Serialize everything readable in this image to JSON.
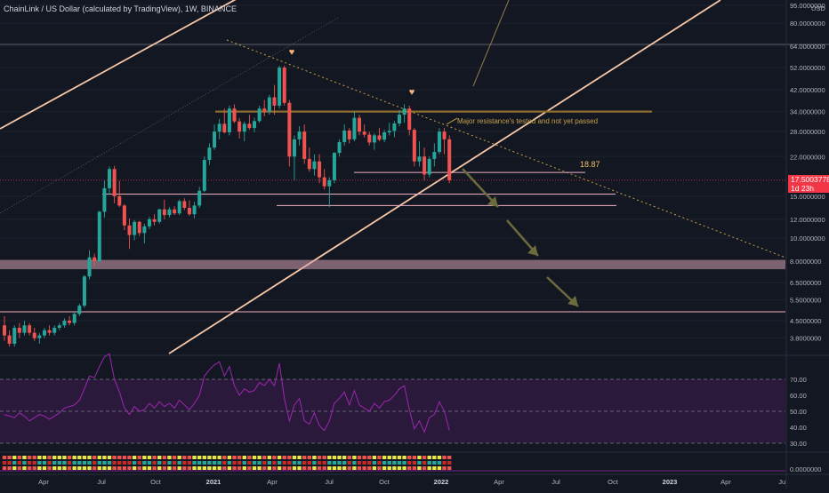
{
  "header": {
    "symbol_title": "ChainLink / US Dollar (calculated by TradingView), 1W, BINANCE"
  },
  "price_axis": {
    "currency": "USD",
    "ticks": [
      {
        "label": "95.0000000",
        "value": 95
      },
      {
        "label": "80.0000000",
        "value": 80
      },
      {
        "label": "64.0000000",
        "value": 64
      },
      {
        "label": "52.0000000",
        "value": 52
      },
      {
        "label": "42.0000000",
        "value": 42
      },
      {
        "label": "34.0000000",
        "value": 34
      },
      {
        "label": "28.0000000",
        "value": 28
      },
      {
        "label": "22.0000000",
        "value": 22
      },
      {
        "label": "15.0000000",
        "value": 15
      },
      {
        "label": "12.0000000",
        "value": 12
      },
      {
        "label": "10.0000000",
        "value": 10
      },
      {
        "label": "8.0000000",
        "value": 8
      },
      {
        "label": "6.5000000",
        "value": 6.5
      },
      {
        "label": "5.5000000",
        "value": 5.5
      },
      {
        "label": "4.5000000",
        "value": 4.5
      },
      {
        "label": "3.8000000",
        "value": 3.8
      }
    ],
    "current_price": "17.5003778",
    "countdown": "1d 23h"
  },
  "rsi_axis": {
    "ticks": [
      "70.00",
      "60.00",
      "50.00",
      "40.00",
      "30.00"
    ],
    "upper": 70,
    "middle": 50,
    "lower": 30
  },
  "volume_axis": {
    "label": "0.0000000"
  },
  "time_axis": {
    "labels": [
      "Apr",
      "Jul",
      "Oct",
      "2021",
      "Apr",
      "Jul",
      "Oct",
      "2022",
      "Apr",
      "Jul",
      "Oct",
      "2023",
      "Apr",
      "Jul"
    ]
  },
  "annotations": {
    "resistance_note": "Major resistance's tested and not yet passed",
    "level_label": "18.87"
  },
  "colors": {
    "background": "#131722",
    "up": "#26a69a",
    "down": "#ef5350",
    "channel_main": "#f7c8a8",
    "channel_thin": "#5d606b",
    "resistance": "#8d6e2e",
    "support": "#f0b0c0",
    "zone": "#d4a0b0",
    "rsi_line": "#9c27b0",
    "arrow": "#6b6b3d"
  },
  "chart_data": {
    "type": "candlestick",
    "interval": "1W",
    "y_scale": "log",
    "y_range": [
      3.3,
      100
    ],
    "candles": [
      [
        4.3,
        4.7,
        3.7,
        3.9
      ],
      [
        3.9,
        4.1,
        3.5,
        3.6
      ],
      [
        3.6,
        4.3,
        3.5,
        4.2
      ],
      [
        4.2,
        4.4,
        3.8,
        4.0
      ],
      [
        4.0,
        4.5,
        3.9,
        4.3
      ],
      [
        4.3,
        4.4,
        3.9,
        4.0
      ],
      [
        4.0,
        4.2,
        3.7,
        3.8
      ],
      [
        3.8,
        4.0,
        3.6,
        3.9
      ],
      [
        3.9,
        4.2,
        3.8,
        4.1
      ],
      [
        4.1,
        4.3,
        3.9,
        4.0
      ],
      [
        4.0,
        4.3,
        3.9,
        4.2
      ],
      [
        4.2,
        4.4,
        4.1,
        4.3
      ],
      [
        4.3,
        4.6,
        4.2,
        4.5
      ],
      [
        4.5,
        4.7,
        4.3,
        4.4
      ],
      [
        4.4,
        4.9,
        4.3,
        4.8
      ],
      [
        4.8,
        5.3,
        4.7,
        5.2
      ],
      [
        5.2,
        7.0,
        5.1,
        6.9
      ],
      [
        6.9,
        8.9,
        6.7,
        8.3
      ],
      [
        8.3,
        8.6,
        7.6,
        8.0
      ],
      [
        8.0,
        13.0,
        7.9,
        12.9
      ],
      [
        12.9,
        17.4,
        12.2,
        16.2
      ],
      [
        16.2,
        20.0,
        15.2,
        19.5
      ],
      [
        19.5,
        20.1,
        14.0,
        15.0
      ],
      [
        15.0,
        17.4,
        13.5,
        13.7
      ],
      [
        13.7,
        13.9,
        10.8,
        11.3
      ],
      [
        11.3,
        12.1,
        9.0,
        10.3
      ],
      [
        10.3,
        11.9,
        9.8,
        11.7
      ],
      [
        11.7,
        11.8,
        10.2,
        10.5
      ],
      [
        10.5,
        11.5,
        9.5,
        11.2
      ],
      [
        11.2,
        12.3,
        10.9,
        12.0
      ],
      [
        12.0,
        12.6,
        11.3,
        11.7
      ],
      [
        11.7,
        13.3,
        11.5,
        13.2
      ],
      [
        13.2,
        14.5,
        12.0,
        12.5
      ],
      [
        12.5,
        13.5,
        12.2,
        13.2
      ],
      [
        13.2,
        13.6,
        12.5,
        12.7
      ],
      [
        12.7,
        14.5,
        12.5,
        14.3
      ],
      [
        14.3,
        14.7,
        13.1,
        13.4
      ],
      [
        13.4,
        14.4,
        12.4,
        12.6
      ],
      [
        12.6,
        14.2,
        12.1,
        13.7
      ],
      [
        13.7,
        16.4,
        13.4,
        15.8
      ],
      [
        15.8,
        22.0,
        15.6,
        21.3
      ],
      [
        21.3,
        25.0,
        20.3,
        24.0
      ],
      [
        24.0,
        30.0,
        23.5,
        28.0
      ],
      [
        28.0,
        31.7,
        26.0,
        30.2
      ],
      [
        30.2,
        35.0,
        27.5,
        27.8
      ],
      [
        27.8,
        36.0,
        27.0,
        35.0
      ],
      [
        35.0,
        36.5,
        30.4,
        30.9
      ],
      [
        30.9,
        31.9,
        26.2,
        28.0
      ],
      [
        28.0,
        30.9,
        25.5,
        30.2
      ],
      [
        30.2,
        33.0,
        28.5,
        29.0
      ],
      [
        29.0,
        32.0,
        27.8,
        31.0
      ],
      [
        31.0,
        36.0,
        30.5,
        35.0
      ],
      [
        35.0,
        38.0,
        32.5,
        34.0
      ],
      [
        34.0,
        40.0,
        33.0,
        39.0
      ],
      [
        39.0,
        44.0,
        33.0,
        36.0
      ],
      [
        36.0,
        53.0,
        35.0,
        52.0
      ],
      [
        52.0,
        53.0,
        36.0,
        37.0
      ],
      [
        37.0,
        38.0,
        20.0,
        22.0
      ],
      [
        22.0,
        27.0,
        17.5,
        26.0
      ],
      [
        26.0,
        29.5,
        24.5,
        28.0
      ],
      [
        28.0,
        30.0,
        20.5,
        21.5
      ],
      [
        21.5,
        24.0,
        19.0,
        19.5
      ],
      [
        19.5,
        22.5,
        18.3,
        21.0
      ],
      [
        21.0,
        22.5,
        17.0,
        18.0
      ],
      [
        18.0,
        19.5,
        16.0,
        16.5
      ],
      [
        16.5,
        18.0,
        13.5,
        17.5
      ],
      [
        17.5,
        23.0,
        17.0,
        22.8
      ],
      [
        22.8,
        26.0,
        22.0,
        25.3
      ],
      [
        25.3,
        30.0,
        24.5,
        28.3
      ],
      [
        28.3,
        29.0,
        25.0,
        26.0
      ],
      [
        26.0,
        34.0,
        25.5,
        32.0
      ],
      [
        32.0,
        33.0,
        27.0,
        28.0
      ],
      [
        28.0,
        30.0,
        26.5,
        27.2
      ],
      [
        27.2,
        28.0,
        24.5,
        25.2
      ],
      [
        25.2,
        27.5,
        23.5,
        27.0
      ],
      [
        27.0,
        29.0,
        25.5,
        25.9
      ],
      [
        25.9,
        28.5,
        25.3,
        27.8
      ],
      [
        27.8,
        30.5,
        27.0,
        28.2
      ],
      [
        28.2,
        31.0,
        26.5,
        30.3
      ],
      [
        30.3,
        34.5,
        29.5,
        33.0
      ],
      [
        33.0,
        36.5,
        30.5,
        35.0
      ],
      [
        35.0,
        36.0,
        27.0,
        28.5
      ],
      [
        28.5,
        29.0,
        20.0,
        21.0
      ],
      [
        21.0,
        25.5,
        20.0,
        22.0
      ],
      [
        22.0,
        24.0,
        17.5,
        18.5
      ],
      [
        18.5,
        22.0,
        18.0,
        21.5
      ],
      [
        21.5,
        25.0,
        20.0,
        23.0
      ],
      [
        23.0,
        29.0,
        22.5,
        28.0
      ],
      [
        28.0,
        29.0,
        22.5,
        26.0
      ],
      [
        26.0,
        27.0,
        17.0,
        17.5
      ]
    ],
    "horizontal_levels": [
      {
        "price": 34.0,
        "kind": "resistance"
      },
      {
        "price": 18.87,
        "kind": "level"
      },
      {
        "price": 15.3,
        "kind": "support"
      },
      {
        "price": 13.7,
        "kind": "support"
      },
      {
        "price": 4.9,
        "kind": "support"
      }
    ],
    "zones": [
      {
        "from": 7.4,
        "to": 8.1,
        "kind": "demand"
      }
    ],
    "rsi": [
      48,
      47,
      46,
      49,
      47,
      44,
      46,
      48,
      47,
      45,
      47,
      49,
      52,
      53,
      54,
      57,
      64,
      72,
      71,
      78,
      84,
      86,
      70,
      62,
      52,
      48,
      53,
      50,
      51,
      55,
      52,
      56,
      53,
      55,
      52,
      57,
      54,
      51,
      55,
      60,
      72,
      76,
      79,
      81,
      72,
      78,
      66,
      60,
      64,
      62,
      63,
      68,
      66,
      70,
      66,
      80,
      58,
      44,
      54,
      58,
      44,
      42,
      49,
      41,
      38,
      44,
      55,
      58,
      62,
      54,
      63,
      54,
      52,
      50,
      55,
      52,
      56,
      57,
      60,
      64,
      66,
      51,
      39,
      44,
      37,
      46,
      48,
      56,
      50,
      38
    ]
  }
}
